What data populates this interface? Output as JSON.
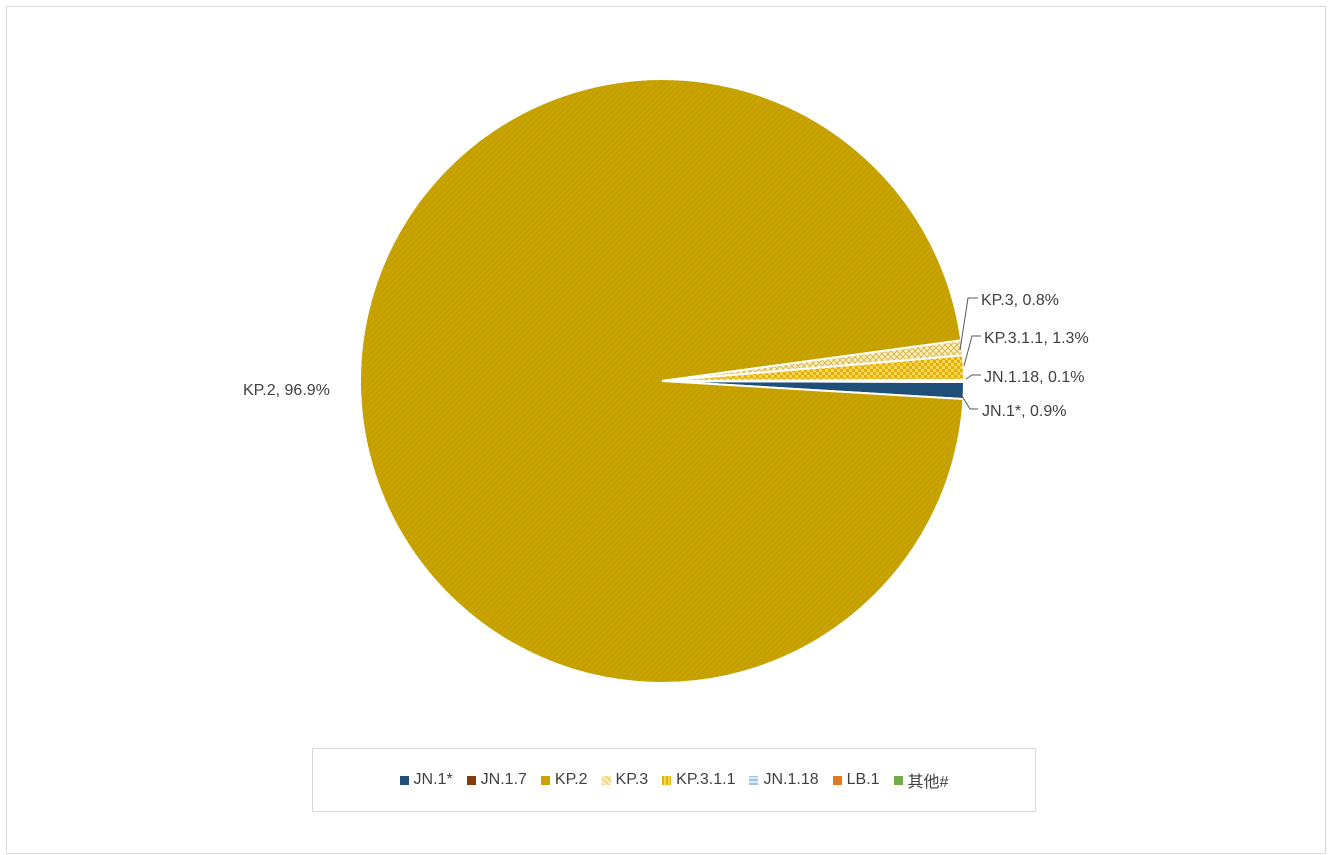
{
  "chart_data": {
    "type": "pie",
    "title": "",
    "slices": [
      {
        "name": "JN.1*",
        "value": 0.9,
        "label": "JN.1*, 0.9%",
        "color": "#1f4e79"
      },
      {
        "name": "JN.1.7",
        "value": 0.0,
        "label": "",
        "color": "#843c0c"
      },
      {
        "name": "KP.2",
        "value": 96.9,
        "label": "KP.2, 96.9%",
        "color": "#c9a400"
      },
      {
        "name": "KP.3",
        "value": 0.8,
        "label": "KP.3, 0.8%",
        "color": "#f2d27a"
      },
      {
        "name": "KP.3.1.1",
        "value": 1.3,
        "label": "KP.3.1.1, 1.3%",
        "color": "#e6b100"
      },
      {
        "name": "JN.1.18",
        "value": 0.1,
        "label": "JN.1.18, 0.1%",
        "color": "#9dc3e6"
      },
      {
        "name": "LB.1",
        "value": 0.0,
        "label": "",
        "color": "#e07b24"
      },
      {
        "name": "其他#",
        "value": 0.0,
        "label": "",
        "color": "#70ad47"
      }
    ],
    "legend_position": "bottom"
  }
}
